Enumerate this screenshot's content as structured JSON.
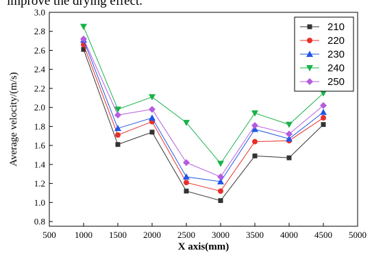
{
  "caption_fragment": "improve the drying effect.",
  "chart_data": {
    "type": "line",
    "title": "",
    "xlabel": "X axis(mm)",
    "ylabel": "Average velocity/(m/s)",
    "xlim": [
      500,
      5000
    ],
    "ylim": [
      0.75,
      3.0
    ],
    "xticks": [
      500,
      1000,
      1500,
      2000,
      2500,
      3000,
      3500,
      4000,
      4500,
      5000
    ],
    "yticks": [
      0.8,
      1.0,
      1.2,
      1.4,
      1.6,
      1.8,
      2.0,
      2.2,
      2.4,
      2.6,
      2.8,
      3.0
    ],
    "x": [
      1000,
      1500,
      2000,
      2500,
      3000,
      3500,
      4000,
      4500
    ],
    "legend_position": "top-right",
    "grid": false,
    "series": [
      {
        "name": "210",
        "color": "#333333",
        "marker": "square",
        "values": [
          2.61,
          1.61,
          1.74,
          1.12,
          1.02,
          1.49,
          1.47,
          1.82
        ]
      },
      {
        "name": "220",
        "color": "#e8302a",
        "marker": "circle",
        "values": [
          2.66,
          1.71,
          1.85,
          1.21,
          1.12,
          1.64,
          1.65,
          1.89
        ]
      },
      {
        "name": "230",
        "color": "#1f56e6",
        "marker": "triangle-up",
        "values": [
          2.71,
          1.78,
          1.89,
          1.27,
          1.22,
          1.77,
          1.67,
          1.95
        ]
      },
      {
        "name": "240",
        "color": "#19b24a",
        "marker": "triangle-down",
        "values": [
          2.85,
          1.98,
          2.11,
          1.84,
          1.41,
          1.94,
          1.82,
          2.15
        ]
      },
      {
        "name": "250",
        "color": "#b55be0",
        "marker": "diamond",
        "values": [
          2.72,
          1.92,
          1.98,
          1.42,
          1.27,
          1.81,
          1.72,
          2.02
        ]
      }
    ]
  }
}
